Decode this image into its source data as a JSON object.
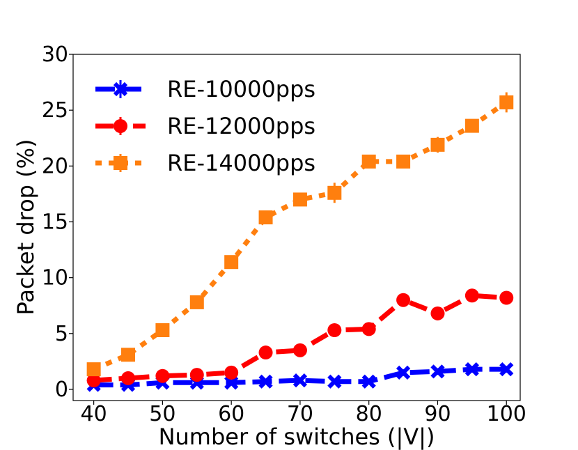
{
  "chart_data": {
    "type": "line",
    "title": "",
    "xlabel": "Number of switches (|V|)",
    "ylabel": "Packet drop (%)",
    "xlim": [
      37,
      102
    ],
    "ylim": [
      -1,
      30
    ],
    "xticks": [
      40,
      50,
      60,
      70,
      80,
      90,
      100
    ],
    "yticks": [
      0,
      5,
      10,
      15,
      20,
      25,
      30
    ],
    "grid": false,
    "legend_position": "top-left",
    "x": [
      40,
      45,
      50,
      55,
      60,
      65,
      70,
      75,
      80,
      85,
      90,
      95,
      100
    ],
    "series": [
      {
        "name": "RE-10000pps",
        "color": "#0000ff",
        "marker": "x",
        "dash": "dashed",
        "values": [
          0.4,
          0.4,
          0.6,
          0.6,
          0.6,
          0.7,
          0.8,
          0.7,
          0.7,
          1.5,
          1.6,
          1.8,
          1.8
        ],
        "errors": [
          0.2,
          0.2,
          0.2,
          0.2,
          0.2,
          0.2,
          0.2,
          0.2,
          0.2,
          0.3,
          0.3,
          0.3,
          0.3
        ]
      },
      {
        "name": "RE-12000pps",
        "color": "#ff0000",
        "marker": "o",
        "dash": "dashdot",
        "values": [
          0.8,
          1.0,
          1.2,
          1.3,
          1.5,
          3.3,
          3.5,
          5.3,
          5.4,
          8.0,
          6.8,
          8.4,
          8.2
        ],
        "errors": [
          0.2,
          0.2,
          0.2,
          0.2,
          0.2,
          0.3,
          0.3,
          0.3,
          0.3,
          0.5,
          0.4,
          0.6,
          0.4
        ]
      },
      {
        "name": "RE-14000pps",
        "color": "#ff7f0e",
        "marker": "s",
        "dash": "dotted",
        "values": [
          1.8,
          3.1,
          5.3,
          7.8,
          11.4,
          15.4,
          17.0,
          17.6,
          20.4,
          20.4,
          21.9,
          23.6,
          25.7
        ],
        "errors": [
          0.3,
          0.4,
          0.4,
          0.4,
          0.5,
          0.6,
          0.6,
          0.9,
          0.6,
          0.6,
          0.7,
          0.6,
          0.9
        ]
      }
    ]
  }
}
